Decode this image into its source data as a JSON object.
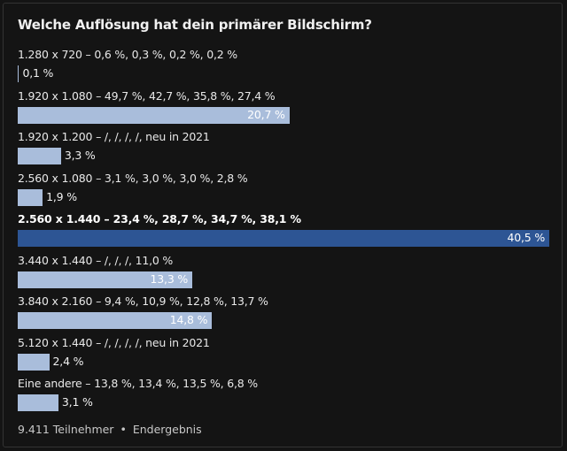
{
  "poll": {
    "title": "Welche Auflösung hat dein primärer Bildschirm?",
    "participants": "9.411 Teilnehmer",
    "separator": "•",
    "status": "Endergebnis"
  },
  "chart_data": {
    "type": "bar",
    "orientation": "horizontal",
    "categories": [
      "1.280 x 720 – 0,6 %, 0,3 %, 0,2 %, 0,2 %",
      "1.920 x 1.080 – 49,7 %, 42,7 %, 35,8 %, 27,4 %",
      "1.920 x 1.200 – /, /, /, /, neu in 2021",
      "2.560 x 1.080 – 3,1 %, 3,0 %, 3,0 %, 2,8 %",
      "2.560 x 1.440 – 23,4 %, 28,7 %, 34,7 %, 38,1 %",
      "3.440 x 1.440 – /, /, /, 11,0 %",
      "3.840 x 2.160 – 9,4 %, 10,9 %, 12,8 %, 13,7 %",
      "5.120 x 1.440 – /, /, /, /, neu in 2021",
      "Eine andere – 13,8 %, 13,4 %, 13,5 %, 6,8 %"
    ],
    "values": [
      0.1,
      20.7,
      3.3,
      1.9,
      40.5,
      13.3,
      14.8,
      2.4,
      3.1
    ],
    "value_labels": [
      "0,1 %",
      "20,7 %",
      "3,3 %",
      "1,9 %",
      "40,5 %",
      "13,3 %",
      "14,8 %",
      "2,4 %",
      "3,1 %"
    ],
    "highlight_index": 4,
    "xlim": [
      0,
      40.5
    ],
    "colors": {
      "bar": "#a9bddb",
      "winner": "#2d5594",
      "background": "#141414"
    }
  }
}
